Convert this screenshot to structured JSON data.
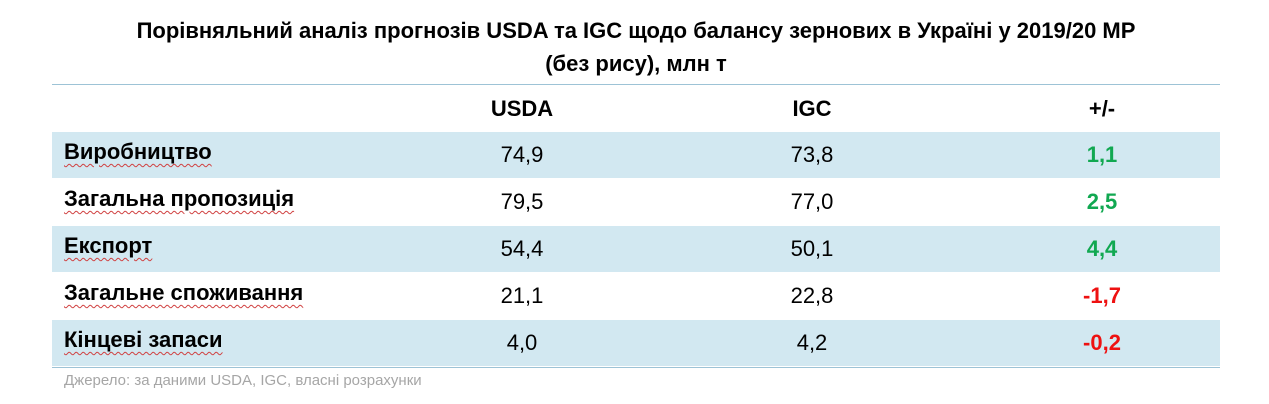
{
  "title": {
    "line1": "Порівняльний аналіз прогнозів USDA та IGC щодо балансу зернових в Україні у 2019/20 МР",
    "line2": "(без рису), млн т"
  },
  "table": {
    "headers": [
      "",
      "USDA",
      "IGC",
      "+/-"
    ],
    "rows": [
      {
        "label": "Виробництво",
        "usda": "74,9",
        "igc": "73,8",
        "diff": "1,1",
        "sign": "positive"
      },
      {
        "label": "Загальна пропозиція",
        "usda": "79,5",
        "igc": "77,0",
        "diff": "2,5",
        "sign": "positive"
      },
      {
        "label": "Експорт",
        "usda": "54,4",
        "igc": "50,1",
        "diff": "4,4",
        "sign": "positive"
      },
      {
        "label": "Загальне споживання",
        "usda": "21,1",
        "igc": "22,8",
        "diff": "-1,7",
        "sign": "negative"
      },
      {
        "label": "Кінцеві запаси",
        "usda": "4,0",
        "igc": "4,2",
        "diff": "-0,2",
        "sign": "negative"
      }
    ]
  },
  "source": "Джерело: за даними USDA, IGC, власні розрахунки",
  "colors": {
    "row_shade": "#d2e8f1",
    "positive": "#11a851",
    "negative": "#ee1111",
    "source_text": "#a6a6a6",
    "rule": "#9dc3d6"
  }
}
